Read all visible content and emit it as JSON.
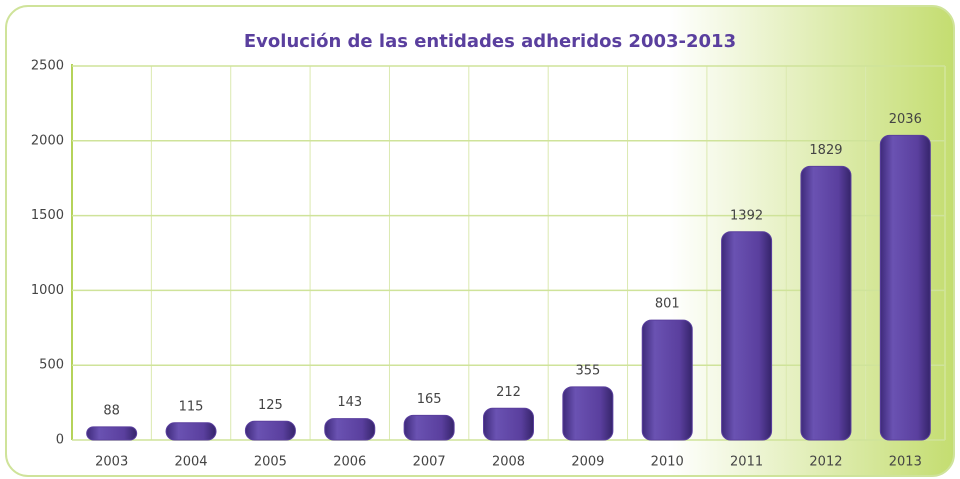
{
  "chart_data": {
    "type": "bar",
    "title": "Evolución de las entidades adheridos 2003-2013",
    "categories": [
      "2003",
      "2004",
      "2005",
      "2006",
      "2007",
      "2008",
      "2009",
      "2010",
      "2011",
      "2012",
      "2013"
    ],
    "values": [
      88,
      115,
      125,
      143,
      165,
      212,
      355,
      801,
      1392,
      1829,
      2036
    ],
    "color": "#5a3f9e",
    "ylim": [
      0,
      2500
    ],
    "yticks": [
      0,
      500,
      1000,
      1500,
      2000,
      2500
    ],
    "grid": true
  }
}
